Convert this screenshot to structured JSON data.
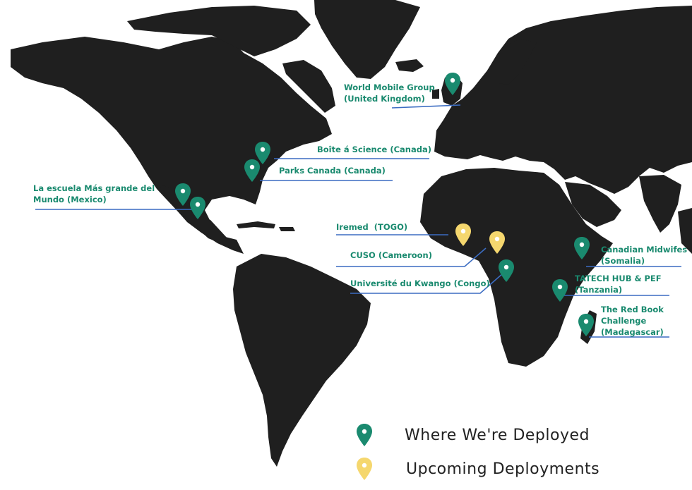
{
  "colors": {
    "deployed": "#1a8a6f",
    "upcoming": "#f5d76e",
    "land": "#1f1f1f",
    "leader": "#3b6cc2",
    "label": "#1a8a6f"
  },
  "labels": {
    "uk": "World Mobile Group\n(United Kingdom)",
    "boite": "Boîte á Science (Canada)",
    "parks": "Parks Canada (Canada)",
    "mexico": "La escuela Más grande del\nMundo (Mexico)",
    "togo": "Iremed  (TOGO)",
    "cuso": "CUSO (Cameroon)",
    "congo": "Université du Kwango (Congo)",
    "somalia": "Canadian Midwifes\n(Somalia)",
    "tanzania": "TATECH HUB & PEF\n(Tanzania)",
    "madagascar": "The Red Book\nChallenge\n(Madagascar)"
  },
  "legend": {
    "deployed": {
      "label": "Where We're Deployed",
      "icon": "teal-map-pin-icon"
    },
    "upcoming": {
      "label": "Upcoming Deployments",
      "icon": "yellow-map-pin-icon"
    }
  }
}
